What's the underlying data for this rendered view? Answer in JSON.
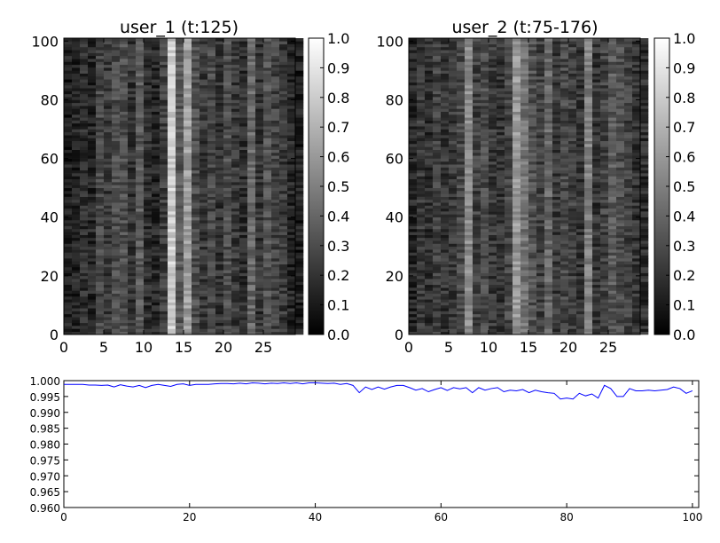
{
  "chart_data": [
    {
      "type": "heatmap",
      "title": "user_1 (t:125)",
      "xlabel": "",
      "ylabel": "",
      "xlim": [
        0,
        29
      ],
      "ylim": [
        0,
        101
      ],
      "x_ticks": [
        "0",
        "5",
        "10",
        "15",
        "20",
        "25"
      ],
      "y_ticks": [
        "0",
        "20",
        "40",
        "60",
        "80",
        "100"
      ],
      "colormap": "gray",
      "colorbar_ticks": [
        "0.0",
        "0.1",
        "0.2",
        "0.3",
        "0.4",
        "0.5",
        "0.6",
        "0.7",
        "0.8",
        "0.9",
        "1.0"
      ],
      "colorbar_range": [
        0,
        1
      ],
      "column_mean_intensity": [
        0.12,
        0.14,
        0.18,
        0.15,
        0.28,
        0.22,
        0.3,
        0.32,
        0.2,
        0.35,
        0.18,
        0.15,
        0.25,
        0.8,
        0.35,
        0.62,
        0.3,
        0.22,
        0.28,
        0.2,
        0.3,
        0.22,
        0.18,
        0.4,
        0.2,
        0.32,
        0.26,
        0.22,
        0.15,
        0.12
      ]
    },
    {
      "type": "heatmap",
      "title": "user_2 (t:75-176)",
      "xlabel": "",
      "ylabel": "",
      "xlim": [
        0,
        29
      ],
      "ylim": [
        0,
        101
      ],
      "x_ticks": [
        "0",
        "5",
        "10",
        "15",
        "20",
        "25"
      ],
      "y_ticks": [
        "0",
        "20",
        "40",
        "60",
        "80",
        "100"
      ],
      "colormap": "gray",
      "colorbar_ticks": [
        "0.0",
        "0.1",
        "0.2",
        "0.3",
        "0.4",
        "0.5",
        "0.6",
        "0.7",
        "0.8",
        "0.9",
        "1.0"
      ],
      "colorbar_range": [
        0,
        1
      ],
      "column_mean_intensity": [
        0.15,
        0.22,
        0.18,
        0.25,
        0.2,
        0.22,
        0.28,
        0.55,
        0.25,
        0.3,
        0.22,
        0.2,
        0.28,
        0.6,
        0.45,
        0.32,
        0.25,
        0.4,
        0.22,
        0.28,
        0.25,
        0.2,
        0.5,
        0.2,
        0.26,
        0.35,
        0.3,
        0.25,
        0.2,
        0.18
      ]
    },
    {
      "type": "line",
      "title": "",
      "xlabel": "",
      "ylabel": "",
      "xlim": [
        0,
        101
      ],
      "ylim": [
        0.96,
        1.0
      ],
      "x_ticks": [
        "0",
        "20",
        "40",
        "60",
        "80",
        "100"
      ],
      "y_ticks": [
        "0.960",
        "0.965",
        "0.970",
        "0.975",
        "0.980",
        "0.985",
        "0.990",
        "0.995",
        "1.000"
      ],
      "series": [
        {
          "color": "#0000ff",
          "x": [
            0,
            1,
            2,
            3,
            4,
            5,
            6,
            7,
            8,
            9,
            10,
            11,
            12,
            13,
            14,
            15,
            16,
            17,
            18,
            19,
            20,
            21,
            22,
            23,
            24,
            25,
            26,
            27,
            28,
            29,
            30,
            31,
            32,
            33,
            34,
            35,
            36,
            37,
            38,
            39,
            40,
            41,
            42,
            43,
            44,
            45,
            46,
            47,
            48,
            49,
            50,
            51,
            52,
            53,
            54,
            55,
            56,
            57,
            58,
            59,
            60,
            61,
            62,
            63,
            64,
            65,
            66,
            67,
            68,
            69,
            70,
            71,
            72,
            73,
            74,
            75,
            76,
            77,
            78,
            79,
            80,
            81,
            82,
            83,
            84,
            85,
            86,
            87,
            88,
            89,
            90,
            91,
            92,
            93,
            94,
            95,
            96,
            97,
            98,
            99,
            100
          ],
          "values": [
            0.9988,
            0.9988,
            0.9988,
            0.9988,
            0.9986,
            0.9986,
            0.9985,
            0.9986,
            0.998,
            0.9987,
            0.9983,
            0.998,
            0.9985,
            0.9978,
            0.9985,
            0.9988,
            0.9985,
            0.9982,
            0.9988,
            0.999,
            0.9985,
            0.9988,
            0.9988,
            0.9988,
            0.999,
            0.9991,
            0.9991,
            0.999,
            0.9992,
            0.999,
            0.9993,
            0.9992,
            0.999,
            0.9992,
            0.9991,
            0.9993,
            0.9991,
            0.9993,
            0.999,
            0.9993,
            0.9993,
            0.9992,
            0.9991,
            0.9992,
            0.9988,
            0.9991,
            0.9985,
            0.9962,
            0.998,
            0.9972,
            0.998,
            0.9973,
            0.998,
            0.9985,
            0.9985,
            0.9978,
            0.997,
            0.9975,
            0.9965,
            0.9972,
            0.9978,
            0.9969,
            0.9978,
            0.9974,
            0.9978,
            0.9962,
            0.9978,
            0.997,
            0.9975,
            0.9978,
            0.9965,
            0.997,
            0.9968,
            0.9972,
            0.9962,
            0.997,
            0.9965,
            0.9962,
            0.996,
            0.9942,
            0.9945,
            0.9942,
            0.996,
            0.9952,
            0.9958,
            0.9945,
            0.9985,
            0.9975,
            0.995,
            0.995,
            0.9975,
            0.9968,
            0.9968,
            0.997,
            0.9968,
            0.997,
            0.9972,
            0.998,
            0.9975,
            0.996,
            0.9968
          ]
        }
      ]
    }
  ]
}
